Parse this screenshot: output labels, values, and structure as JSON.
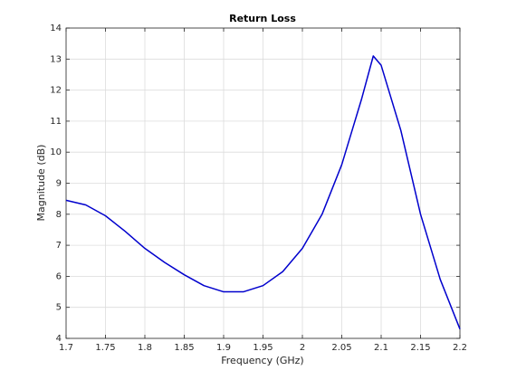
{
  "chart_data": {
    "type": "line",
    "title": "Return Loss",
    "x_label": "Frequency (GHz)",
    "y_label": "Magnitude (dB)",
    "x": [
      1.7,
      1.725,
      1.75,
      1.775,
      1.8,
      1.825,
      1.85,
      1.875,
      1.9,
      1.925,
      1.95,
      1.975,
      2.0,
      2.025,
      2.05,
      2.075,
      2.09,
      2.1,
      2.125,
      2.15,
      2.175,
      2.2
    ],
    "series": [
      {
        "name": "Return Loss",
        "color": "#0000cd",
        "values": [
          8.45,
          8.3,
          7.95,
          7.45,
          6.9,
          6.45,
          6.05,
          5.7,
          5.5,
          5.5,
          5.7,
          6.15,
          6.9,
          8.0,
          9.6,
          11.7,
          13.1,
          12.8,
          10.7,
          8.0,
          5.9,
          4.3
        ]
      }
    ],
    "xlim": [
      1.7,
      2.2
    ],
    "ylim": [
      4,
      14
    ],
    "xticks": [
      1.7,
      1.75,
      1.8,
      1.85,
      1.9,
      1.95,
      2,
      2.05,
      2.1,
      2.15,
      2.2
    ],
    "yticks": [
      4,
      5,
      6,
      7,
      8,
      9,
      10,
      11,
      12,
      13,
      14
    ],
    "grid": true
  }
}
